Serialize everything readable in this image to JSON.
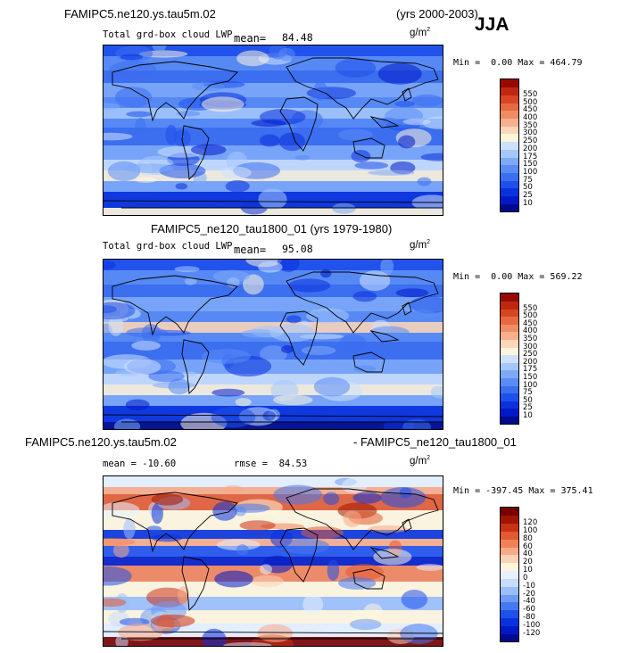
{
  "header": {
    "case1": "FAMIPC5.ne120.ys.tau5m.02",
    "yrs1": "(yrs 2000-2003)",
    "season": "JJA",
    "case2_full": "FAMIPC5_ne120_tau1800_01 (yrs 1979-1980)",
    "diff_left": "FAMIPC5.ne120.ys.tau5m.02",
    "diff_right": "- FAMIPC5_ne120_tau1800_01"
  },
  "panels": [
    {
      "name": "Total grd-box cloud LWP",
      "mean_label": "mean=",
      "mean": "84.48",
      "units": "g/m",
      "units_sup": "2",
      "min_label": "Min =",
      "min": "0.00",
      "max_label": "Max =",
      "max": "464.79"
    },
    {
      "name": "Total grd-box cloud LWP",
      "mean_label": "mean=",
      "mean": "95.08",
      "units": "g/m",
      "units_sup": "2",
      "min_label": "Min =",
      "min": "0.00",
      "max_label": "Max =",
      "max": "569.22"
    },
    {
      "mean_text": "mean = -10.60",
      "rmse_text": "rmse =",
      "rmse": "84.53",
      "units": "g/m",
      "units_sup": "2",
      "min_label": "Min =",
      "min": "-397.45",
      "max_label": "Max =",
      "max": "375.41"
    }
  ],
  "colors": {
    "seq": [
      "#000a8c",
      "#0019c8",
      "#0a32dc",
      "#1e50eb",
      "#3c6ef0",
      "#5a8cf5",
      "#7daaf8",
      "#a5c8fb",
      "#cde1fd",
      "#fff5dc",
      "#fbd7b9",
      "#f7af8c",
      "#f08c64",
      "#e66941",
      "#d74623",
      "#be280f",
      "#960a00"
    ],
    "div": [
      "#000a8c",
      "#0019c8",
      "#0a32dc",
      "#1e50eb",
      "#4678f0",
      "#6e9bf5",
      "#9bbef9",
      "#c8dcfc",
      "#e6f0fe",
      "#fff5dc",
      "#fbd2b4",
      "#f7aa87",
      "#f0825a",
      "#e15a32",
      "#c83214",
      "#a01400",
      "#780000"
    ]
  },
  "chart_data": [
    {
      "type": "heatmap",
      "title": "FAMIPC5.ne120.ys.tau5m.02 (yrs 2000-2003) JJA",
      "variable": "Total grd-box cloud LWP",
      "units": "g/m2",
      "mean": 84.48,
      "min": 0.0,
      "max": 464.79,
      "colorbar_levels": [
        10,
        25,
        50,
        75,
        100,
        150,
        175,
        200,
        250,
        300,
        350,
        400,
        450,
        500,
        550
      ]
    },
    {
      "type": "heatmap",
      "title": "FAMIPC5_ne120_tau1800_01 (yrs 1979-1980)",
      "variable": "Total grd-box cloud LWP",
      "units": "g/m2",
      "mean": 95.08,
      "min": 0.0,
      "max": 569.22,
      "colorbar_levels": [
        10,
        25,
        50,
        75,
        100,
        150,
        175,
        200,
        250,
        300,
        350,
        400,
        450,
        500,
        550
      ]
    },
    {
      "type": "heatmap",
      "title": "FAMIPC5.ne120.ys.tau5m.02 - FAMIPC5_ne120_tau1800_01",
      "units": "g/m2",
      "mean": -10.6,
      "rmse": 84.53,
      "min": -397.45,
      "max": 375.41,
      "colorbar_levels": [
        -120,
        -100,
        -80,
        -60,
        -40,
        -20,
        -10,
        0,
        10,
        20,
        40,
        60,
        80,
        100,
        120
      ]
    }
  ]
}
